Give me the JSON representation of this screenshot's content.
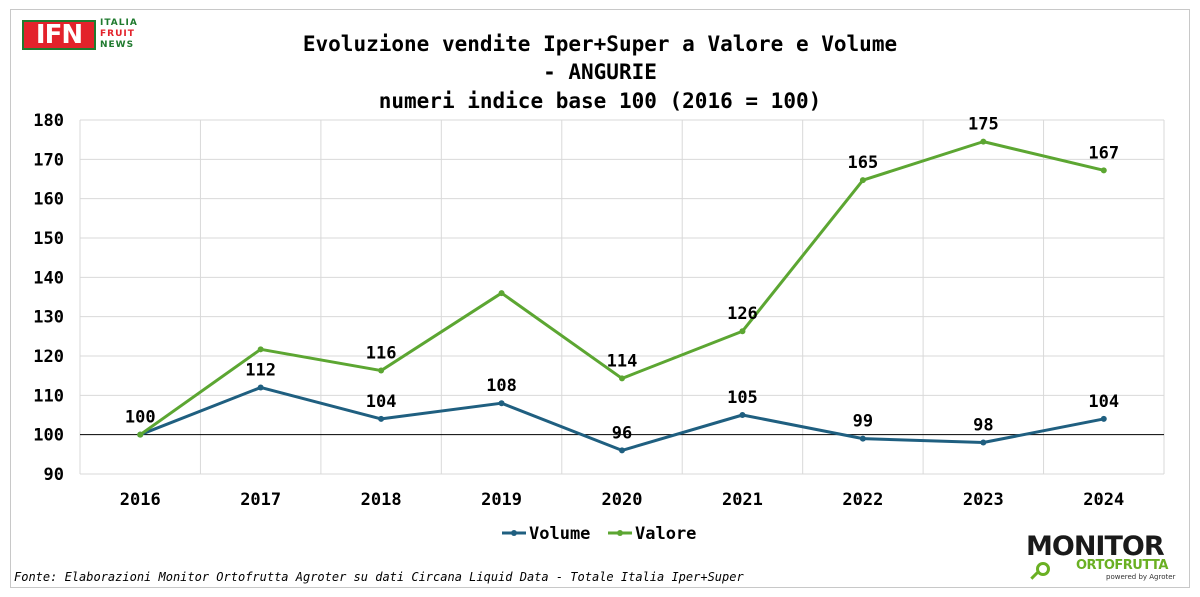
{
  "logos": {
    "ifn": {
      "letters": "IFN",
      "line1": "ITALIA",
      "line2": "FRUIT",
      "line3": "NEWS"
    },
    "monitor": {
      "word": "MONITOR",
      "sub": "ORTOFRUTTA",
      "tagline": "powered by Agroter"
    }
  },
  "source": "Fonte: Elaborazioni Monitor Ortofrutta Agroter su dati Circana Liquid Data - Totale Italia Iper+Super",
  "colors": {
    "volume": "#1f5f80",
    "valore": "#5ca632",
    "grid": "#d9d9d9",
    "baseline": "#000000"
  },
  "chart_data": {
    "type": "line",
    "title": [
      "Evoluzione vendite Iper+Super a Valore e Volume",
      "- ANGURIE",
      "numeri indice base 100 (2016 = 100)"
    ],
    "categories": [
      "2016",
      "2017",
      "2018",
      "2019",
      "2020",
      "2021",
      "2022",
      "2023",
      "2024"
    ],
    "ylim": [
      90,
      180
    ],
    "yticks": [
      90,
      100,
      110,
      120,
      130,
      140,
      150,
      160,
      170,
      180
    ],
    "grid": true,
    "legend_position": "bottom",
    "series": [
      {
        "name": "Volume",
        "values": [
          100,
          112,
          104,
          108,
          96,
          105,
          99,
          98,
          104
        ],
        "labels": [
          "",
          "112",
          "104",
          "108",
          "96",
          "105",
          "99",
          "98",
          "104"
        ]
      },
      {
        "name": "Valore",
        "values": [
          100,
          121.7,
          116.3,
          136,
          114.3,
          126.3,
          164.7,
          174.5,
          167.2
        ],
        "labels": [
          "100",
          "",
          "116",
          "",
          "114",
          "126",
          "165",
          "175",
          "167"
        ]
      }
    ]
  }
}
